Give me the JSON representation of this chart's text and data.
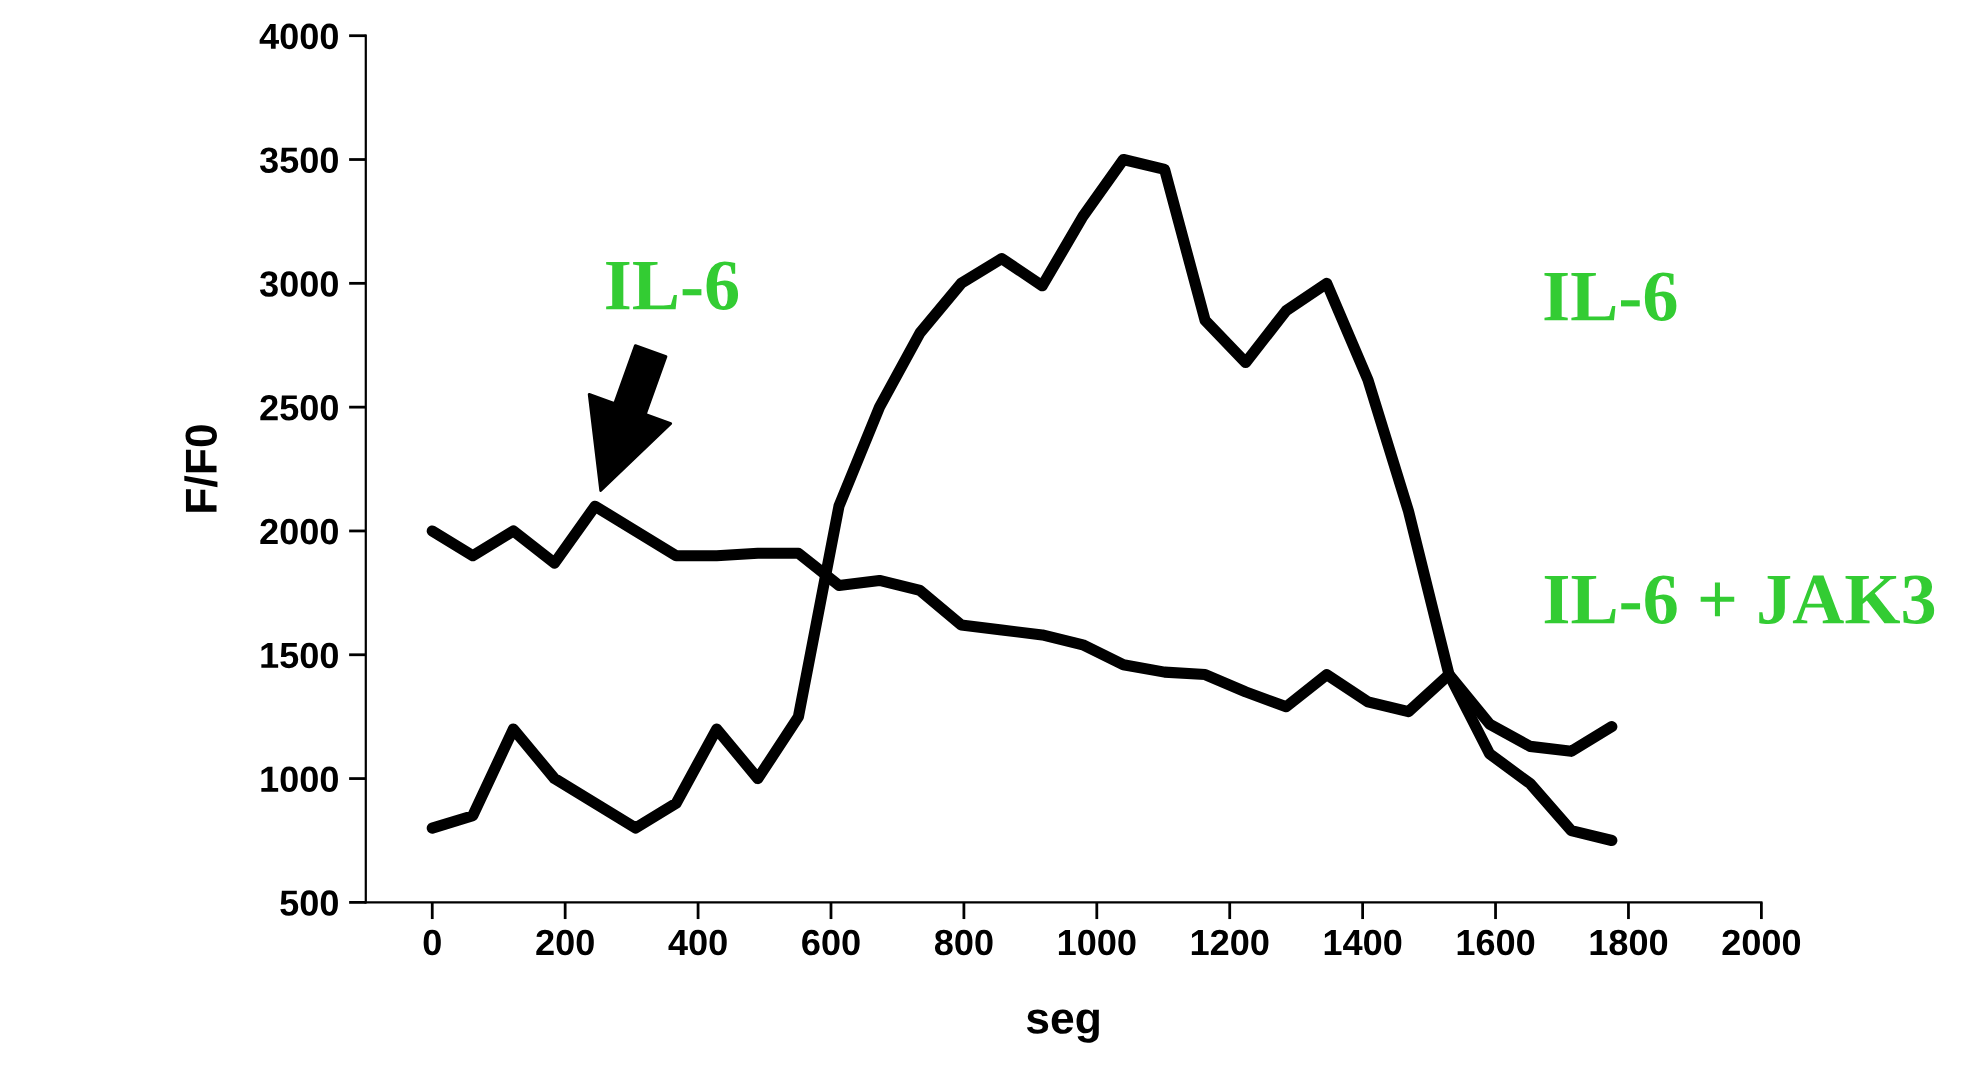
{
  "chart_data": {
    "type": "line",
    "xlabel": "seg",
    "ylabel": "F/F0",
    "x": [
      0,
      61,
      122,
      184,
      245,
      306,
      367,
      428,
      490,
      551,
      612,
      673,
      734,
      796,
      857,
      918,
      979,
      1040,
      1102,
      1163,
      1224,
      1285,
      1346,
      1408,
      1469,
      1530,
      1591,
      1652,
      1714,
      1775
    ],
    "series": [
      {
        "color": "#000000",
        "values": [
          800,
          850,
          1200,
          1000,
          900,
          800,
          900,
          1200,
          1000,
          1250,
          2100,
          2500,
          2800,
          3000,
          3100,
          2990,
          3270,
          3500,
          3460,
          2850,
          2680,
          2890,
          3000,
          2610,
          2080,
          1420,
          1100,
          980,
          790,
          750
        ]
      },
      {
        "color": "#000000",
        "values": [
          2000,
          1900,
          2000,
          1870,
          2100,
          2000,
          1900,
          1900,
          1910,
          1910,
          1780,
          1800,
          1760,
          1620,
          1600,
          1580,
          1540,
          1460,
          1430,
          1420,
          1350,
          1290,
          1420,
          1310,
          1270,
          1420,
          1220,
          1130,
          1110,
          1210
        ]
      }
    ],
    "annotations": [
      {
        "text": "IL-6",
        "x": 245,
        "y": 2100
      },
      "IL-6",
      "IL-6 + JAK3"
    ],
    "xlim": [
      -100,
      2000
    ],
    "xticks": [
      0,
      200,
      400,
      600,
      800,
      1000,
      1200,
      1400,
      1600,
      1800,
      2000
    ],
    "ylim": [
      500,
      4000
    ],
    "yticks": [
      500,
      1000,
      1500,
      2000,
      2500,
      3000,
      3500,
      4000
    ],
    "grid": false,
    "marker": "none",
    "line_style": "solid"
  }
}
